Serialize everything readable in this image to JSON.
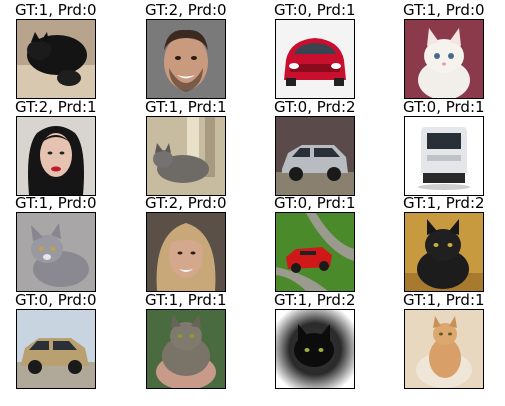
{
  "grid": {
    "cells": [
      {
        "label": "GT:1, Prd:0",
        "subject": "black-cat-image"
      },
      {
        "label": "GT:2, Prd:0",
        "subject": "smiling-man-portrait-image"
      },
      {
        "label": "GT:0, Prd:1",
        "subject": "red-car-front-image"
      },
      {
        "label": "GT:1, Prd:0",
        "subject": "white-kitten-image"
      },
      {
        "label": "GT:2, Prd:1",
        "subject": "dark-haired-woman-portrait-image"
      },
      {
        "label": "GT:1, Prd:1",
        "subject": "gray-cat-on-stairs-image"
      },
      {
        "label": "GT:0, Prd:2",
        "subject": "silver-suv-image"
      },
      {
        "label": "GT:0, Prd:1",
        "subject": "white-van-image"
      },
      {
        "label": "GT:1, Prd:0",
        "subject": "gray-kitten-image"
      },
      {
        "label": "GT:2, Prd:0",
        "subject": "blonde-woman-portrait-image"
      },
      {
        "label": "GT:0, Prd:1",
        "subject": "red-convertible-on-road-image"
      },
      {
        "label": "GT:1, Prd:2",
        "subject": "black-fluffy-cat-image"
      },
      {
        "label": "GT:0, Prd:0",
        "subject": "gold-suv-image"
      },
      {
        "label": "GT:1, Prd:1",
        "subject": "held-tabby-cat-image"
      },
      {
        "label": "GT:1, Prd:2",
        "subject": "black-cat-vignette-image"
      },
      {
        "label": "GT:1, Prd:1",
        "subject": "orange-cat-image"
      }
    ]
  }
}
